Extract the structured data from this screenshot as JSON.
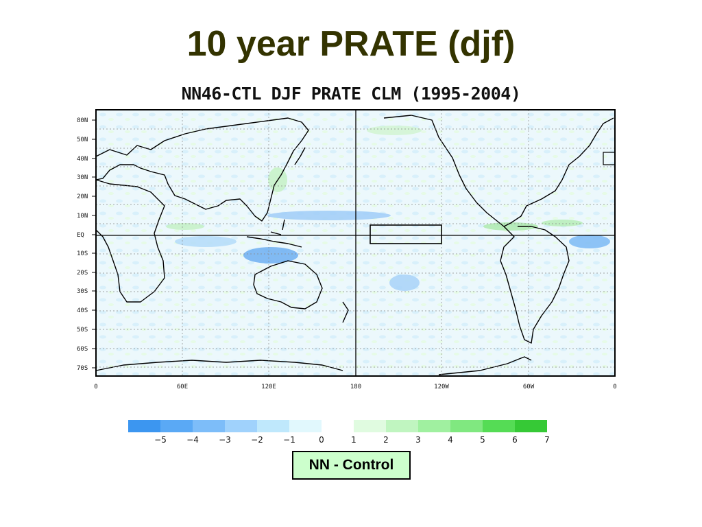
{
  "slide": {
    "title": "10 year PRATE (djf)"
  },
  "map": {
    "title": "NN46-CTL DJF PRATE CLM (1995-2004)",
    "lat_labels": [
      "80N",
      "50N",
      "40N",
      "30N",
      "20N",
      "10N",
      "EQ",
      "10S",
      "20S",
      "30S",
      "40S",
      "50S",
      "60S",
      "70S"
    ],
    "lon_labels": [
      "0",
      "60E",
      "120E",
      "180",
      "120W",
      "60W",
      "0"
    ],
    "highlight_box": {
      "lon_range": "160W-130W",
      "lat_range": "0-5N"
    }
  },
  "colorbar": {
    "ticks": [
      "-5",
      "-4",
      "-3",
      "-2",
      "-1",
      "0",
      "1",
      "2",
      "3",
      "4",
      "5",
      "6",
      "7"
    ],
    "colors": [
      "#3c96f0",
      "#5aa9f5",
      "#7dbdf9",
      "#a0d2fc",
      "#bfe8fc",
      "#e1f8fd",
      "#ffffff",
      "#e0fbe0",
      "#c0f5c0",
      "#a0f0a0",
      "#80e880",
      "#55dc55",
      "#36c936"
    ]
  },
  "footer": {
    "label": "NN - Control"
  }
}
